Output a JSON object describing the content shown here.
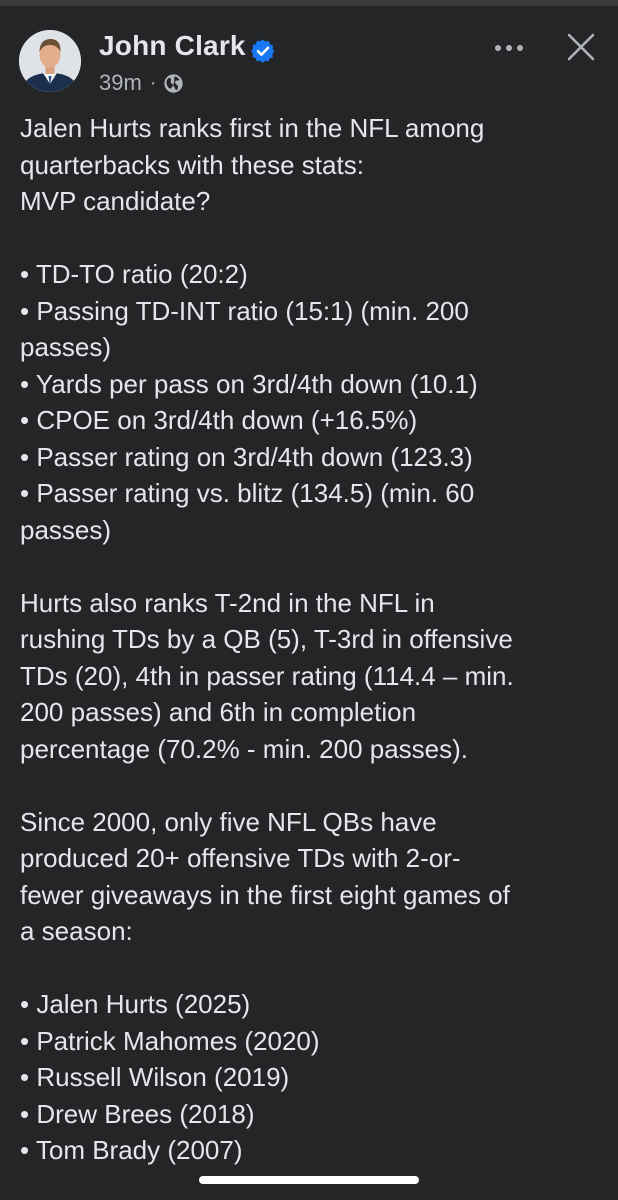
{
  "post": {
    "author": {
      "name": "John Clark",
      "verified": true,
      "avatar_icon": "profile-photo-icon"
    },
    "timestamp": "39m",
    "meta_separator": "·",
    "audience_icon": "globe-icon",
    "lines": [
      "Jalen Hurts ranks first in the NFL among",
      "quarterbacks with these stats:",
      "MVP candidate?",
      "",
      "• TD-TO ratio (20:2)",
      "• Passing TD-INT ratio (15:1) (min. 200",
      "passes)",
      "• Yards per pass on 3rd/4th down (10.1)",
      "• CPOE on 3rd/4th down (+16.5%)",
      "• Passer rating on 3rd/4th down (123.3)",
      "• Passer rating vs. blitz (134.5) (min. 60",
      "passes)",
      "",
      "Hurts also ranks T-2nd in the NFL in",
      "rushing TDs by a QB (5), T-3rd in offensive",
      "TDs (20), 4th in passer rating (114.4 – min.",
      "200 passes) and 6th in completion",
      "percentage (70.2% - min. 200 passes).",
      "",
      "Since 2000, only five NFL QBs have",
      "produced 20+ offensive TDs with 2-or-",
      "fewer giveaways in the first eight games of",
      "a season:",
      "",
      "• Jalen Hurts (2025)",
      "• Patrick Mahomes (2020)",
      "• Russell Wilson (2019)",
      "• Drew Brees (2018)",
      "• Tom Brady (2007)"
    ]
  },
  "header_actions": {
    "more_icon": "more-horizontal-icon",
    "close_icon": "close-icon"
  },
  "colors": {
    "background": "#242527",
    "primary_text": "#e4e6eb",
    "secondary_text": "#b0b3b8",
    "verified_blue": "#1877f2"
  }
}
